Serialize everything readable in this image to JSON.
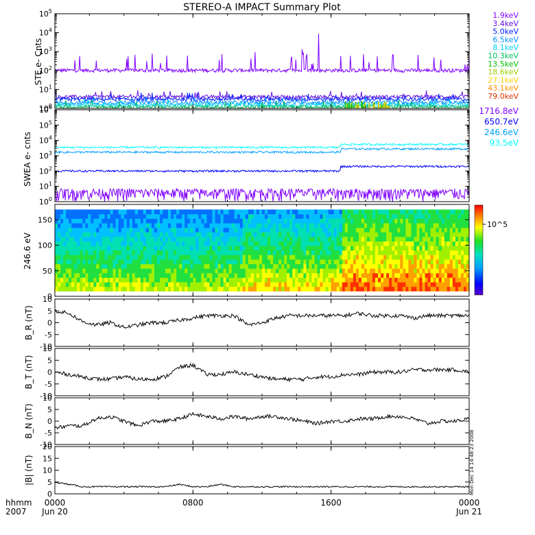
{
  "title": "STEREO-A IMPACT Summary Plot",
  "colors": {
    "frame": "#000000",
    "ste_main": "#8000ff",
    "swea_1716": "#8000ff",
    "swea_650": "#0000ff",
    "swea_246": "#00a0ff",
    "swea_93": "#00ffff"
  },
  "chart_data": [
    {
      "type": "line",
      "panel": "ste",
      "ylabel": "STE e- Cnts",
      "yscale": "log",
      "ylim": [
        1,
        100000
      ],
      "yticks": [
        "10^0",
        "10^1",
        "10^2",
        "10^3",
        "10^4",
        "10^5"
      ],
      "legend": [
        {
          "label": "1.9keV",
          "color": "#8000ff"
        },
        {
          "label": "3.4keV",
          "color": "#6010e0"
        },
        {
          "label": "5.0keV",
          "color": "#0020ff"
        },
        {
          "label": "6.5keV",
          "color": "#0090ff"
        },
        {
          "label": "8.1keV",
          "color": "#00d0ff"
        },
        {
          "label": "10.3keV",
          "color": "#00c060"
        },
        {
          "label": "13.5keV",
          "color": "#00c000"
        },
        {
          "label": "18.6keV",
          "color": "#a0d000"
        },
        {
          "label": "27.1keV",
          "color": "#ffd000"
        },
        {
          "label": "43.1keV",
          "color": "#ff9000"
        },
        {
          "label": "79.0keV",
          "color": "#e03000"
        }
      ],
      "series": [
        {
          "name": "1.9keV",
          "baseline": 100
        },
        {
          "name": "3.4keV",
          "baseline": 4
        },
        {
          "name": "5.0keV",
          "baseline": 3
        },
        {
          "name": "6.5keV",
          "baseline": 2
        },
        {
          "name": "8.1keV",
          "baseline": 1.5
        },
        {
          "name": "10.3keV",
          "baseline": 1.2
        }
      ]
    },
    {
      "type": "line",
      "panel": "swea",
      "ylabel": "SWEA e- cnts",
      "yscale": "log",
      "ylim": [
        1,
        1000000
      ],
      "yticks": [
        "10^0",
        "10^1",
        "10^2",
        "10^3",
        "10^4",
        "10^5",
        "10^6"
      ],
      "legend": [
        {
          "label": "1716.8eV",
          "color": "#8000ff"
        },
        {
          "label": "650.7eV",
          "color": "#0000ff"
        },
        {
          "label": "246.6eV",
          "color": "#00a0ff"
        },
        {
          "label": "93.5eV",
          "color": "#00ffff"
        }
      ],
      "series": [
        {
          "name": "93.5eV",
          "before": 3500,
          "after": 5500
        },
        {
          "name": "246.6eV",
          "before": 1700,
          "after": 2800
        },
        {
          "name": "650.7eV",
          "before": 100,
          "after": 200
        },
        {
          "name": "1716.8eV",
          "before": 3,
          "after": 3
        }
      ]
    },
    {
      "type": "heatmap",
      "panel": "pad",
      "ylabel": "246.6 eV",
      "ylim": [
        0,
        180
      ],
      "yticks": [
        0,
        50,
        100,
        150
      ],
      "colorbar_label": "10^5"
    },
    {
      "type": "line",
      "panel": "br",
      "ylabel": "B_R (nT)",
      "ylim": [
        -10,
        10
      ],
      "yticks": [
        -10,
        -5,
        0,
        5,
        10
      ],
      "y": [
        5,
        4,
        0.5,
        -1,
        0,
        -2,
        -1,
        0,
        0,
        1,
        2,
        3,
        3,
        3,
        -1,
        0,
        2,
        3,
        3,
        3,
        3,
        3,
        4,
        3,
        3,
        3,
        2,
        3,
        3,
        3,
        3
      ]
    },
    {
      "type": "line",
      "panel": "bt",
      "ylabel": "B_T (nT)",
      "ylim": [
        -10,
        10
      ],
      "yticks": [
        -10,
        -5,
        0,
        5,
        10
      ],
      "y": [
        0,
        -1,
        -2,
        -3,
        -3,
        -2,
        -3,
        -3,
        -2,
        2,
        3,
        -1,
        -1,
        0,
        -1,
        -2,
        -3,
        -3,
        -3,
        -2,
        -2,
        -1,
        -1,
        0,
        0,
        0,
        1,
        1,
        1,
        1,
        0
      ]
    },
    {
      "type": "line",
      "panel": "bn",
      "ylabel": "B_N (nT)",
      "ylim": [
        -10,
        10
      ],
      "yticks": [
        -10,
        -5,
        0,
        5,
        10
      ],
      "y": [
        -3,
        -2,
        -2,
        1,
        2,
        0,
        -2,
        0,
        0,
        1,
        3,
        2,
        1,
        2,
        1,
        2,
        2,
        1,
        0,
        -1,
        0,
        0,
        1,
        1,
        2,
        2,
        1,
        -1,
        0,
        0,
        1
      ]
    },
    {
      "type": "line",
      "panel": "b",
      "ylabel": "|B| (nT)",
      "ylim": [
        0,
        20
      ],
      "yticks": [
        0,
        5,
        10,
        15,
        20
      ],
      "y": [
        5,
        4,
        3,
        3,
        3,
        3,
        3,
        3,
        3,
        4,
        3,
        3,
        4,
        3,
        3,
        3,
        3,
        3,
        3,
        3,
        3,
        3,
        3,
        3,
        3,
        3,
        3,
        3,
        3,
        3,
        3
      ]
    }
  ],
  "xaxis": {
    "corner_top": "hhmm",
    "corner_bottom": "2007",
    "ticks": [
      {
        "top": "0000",
        "bottom": "Jun 20",
        "frac": 0
      },
      {
        "top": "0800",
        "bottom": "",
        "frac": 0.3333
      },
      {
        "top": "1600",
        "bottom": "",
        "frac": 0.6667
      },
      {
        "top": "0000",
        "bottom": "Jun 21",
        "frac": 1
      }
    ]
  },
  "stamp": "Mon Dec 14 14:48:23 2008"
}
